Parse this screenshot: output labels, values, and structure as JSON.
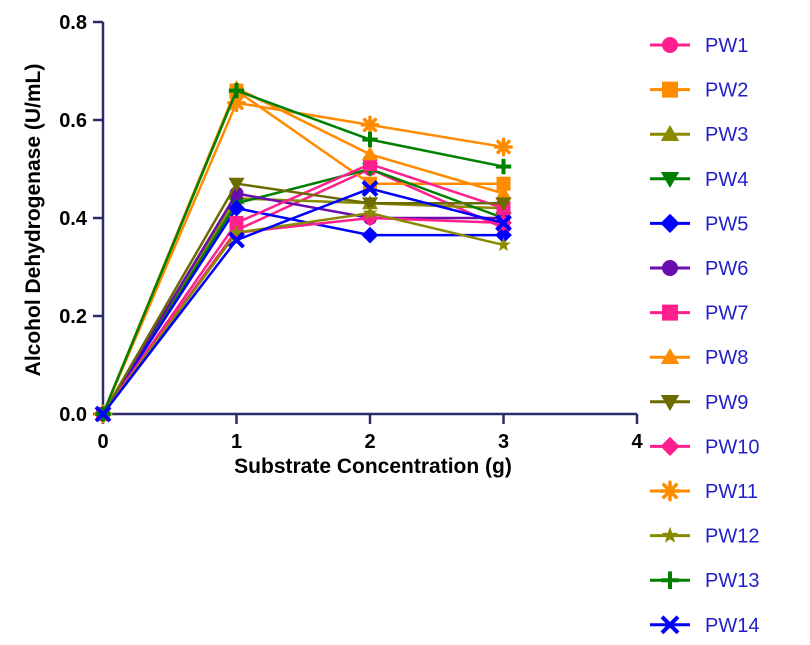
{
  "chart_data": {
    "type": "line",
    "title": "",
    "xlabel": "Substrate Concentration (g)",
    "ylabel": "Alcohol Dehydrogenase (U/mL)",
    "x": [
      0,
      1,
      2,
      3
    ],
    "xlim": [
      0,
      4
    ],
    "ylim": [
      0,
      0.8
    ],
    "x_ticks": [
      "0",
      "1",
      "2",
      "3",
      "4"
    ],
    "y_ticks": [
      "0.0",
      "0.2",
      "0.4",
      "0.6",
      "0.8"
    ],
    "grid": false,
    "legend_position": "right",
    "series": [
      {
        "name": "PW1",
        "color": "#ff1f8f",
        "marker": "circle",
        "values": [
          0,
          0.375,
          0.5,
          0.38
        ]
      },
      {
        "name": "PW2",
        "color": "#ff8c00",
        "marker": "square",
        "values": [
          0,
          0.66,
          0.47,
          0.47
        ]
      },
      {
        "name": "PW3",
        "color": "#8a8a00",
        "marker": "triangle-up",
        "values": [
          0,
          0.44,
          0.43,
          0.42
        ]
      },
      {
        "name": "PW4",
        "color": "#008000",
        "marker": "triangle-down",
        "values": [
          0,
          0.43,
          0.5,
          0.4
        ]
      },
      {
        "name": "PW5",
        "color": "#0000ff",
        "marker": "diamond",
        "values": [
          0,
          0.42,
          0.365,
          0.365
        ]
      },
      {
        "name": "PW6",
        "color": "#6a0dad",
        "marker": "circle",
        "values": [
          0,
          0.45,
          0.4,
          0.4
        ]
      },
      {
        "name": "PW7",
        "color": "#ff1f8f",
        "marker": "square",
        "values": [
          0,
          0.39,
          0.51,
          0.42
        ]
      },
      {
        "name": "PW8",
        "color": "#ff8c00",
        "marker": "triangle-up",
        "values": [
          0,
          0.665,
          0.53,
          0.45
        ]
      },
      {
        "name": "PW9",
        "color": "#6b6b00",
        "marker": "triangle-down",
        "values": [
          0,
          0.47,
          0.43,
          0.43
        ]
      },
      {
        "name": "PW10",
        "color": "#ff1f8f",
        "marker": "diamond",
        "values": [
          0,
          0.37,
          0.4,
          0.39
        ]
      },
      {
        "name": "PW11",
        "color": "#ff8c00",
        "marker": "asterisk",
        "values": [
          0,
          0.635,
          0.59,
          0.545
        ]
      },
      {
        "name": "PW12",
        "color": "#8a8a00",
        "marker": "star",
        "values": [
          0,
          0.37,
          0.41,
          0.345
        ]
      },
      {
        "name": "PW13",
        "color": "#008000",
        "marker": "plus",
        "values": [
          0,
          0.66,
          0.56,
          0.505
        ]
      },
      {
        "name": "PW14",
        "color": "#0000ff",
        "marker": "x",
        "values": [
          0,
          0.355,
          0.46,
          0.39
        ]
      }
    ]
  }
}
